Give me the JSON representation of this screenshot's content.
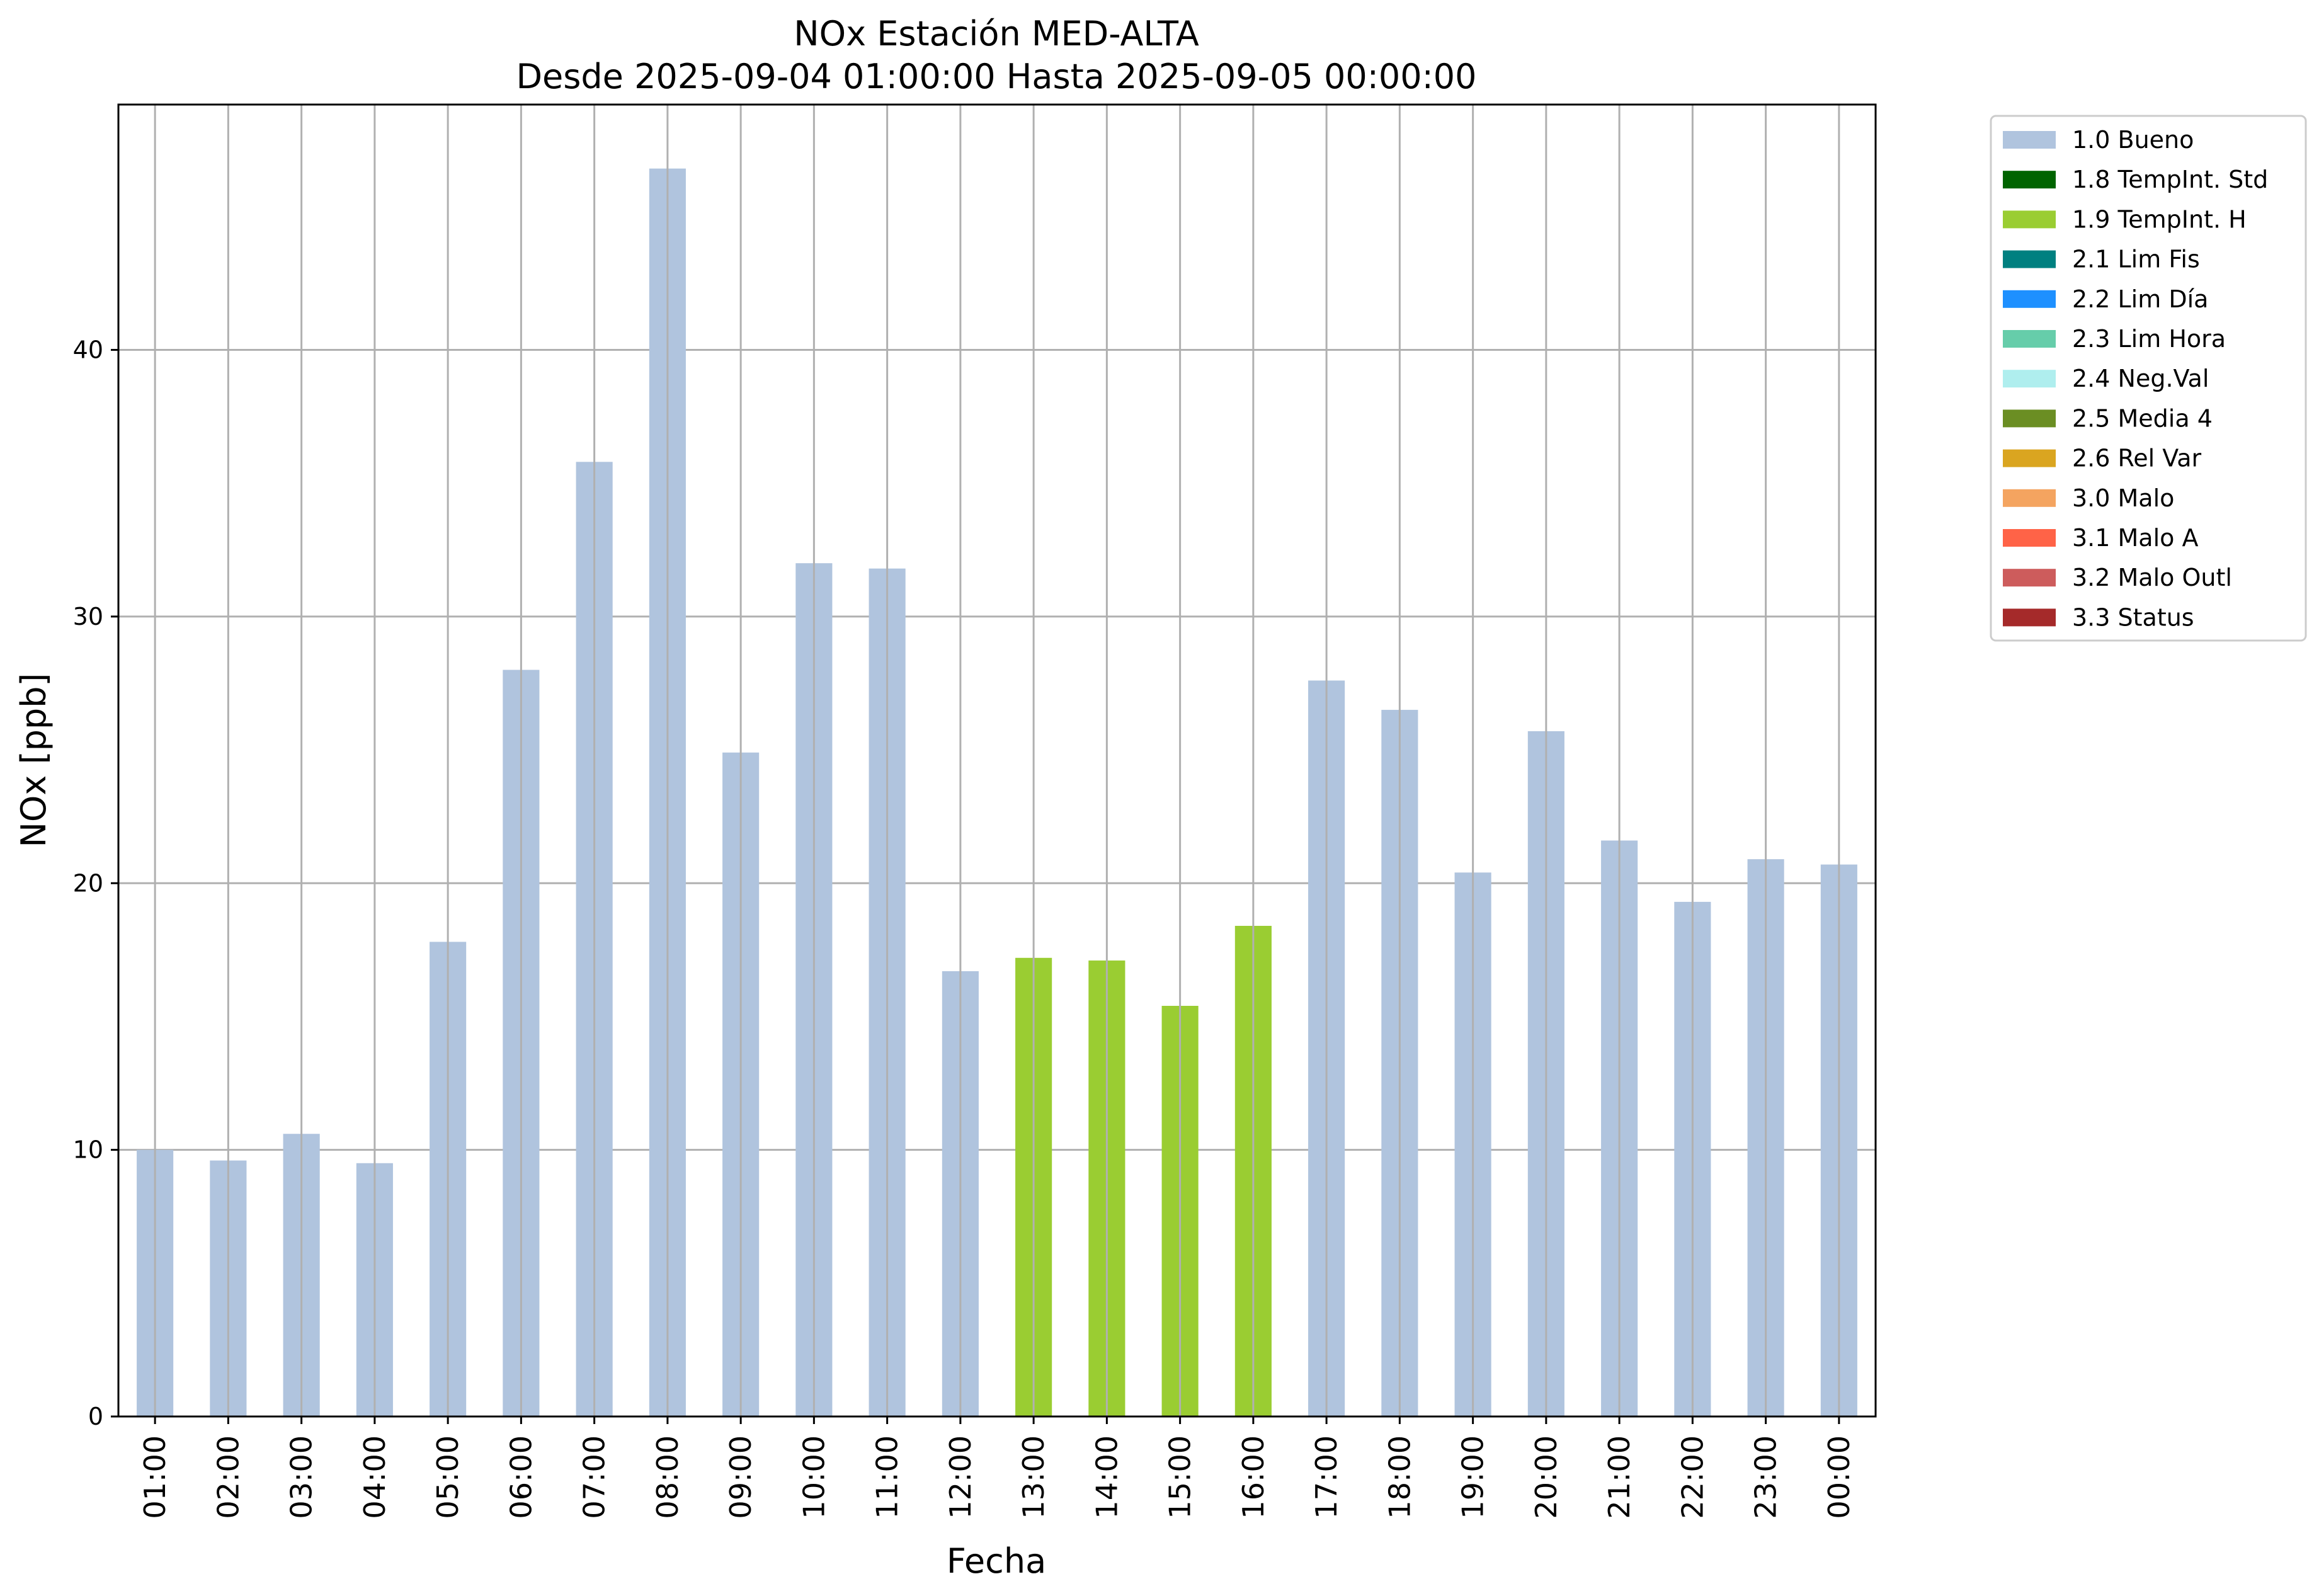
{
  "colors": {
    "Bueno": "#b0c4de",
    "TempIntH": "#9acd32",
    "grid": "#b0b0b0"
  },
  "chart_data": {
    "type": "bar",
    "title": "NOx Estación MED-ALTA",
    "subtitle": "Desde 2025-09-04 01:00:00 Hasta 2025-09-05 00:00:00",
    "xlabel": "Fecha",
    "ylabel": "NOx [ppb]",
    "ylim": [
      0,
      49.2
    ],
    "yticks": [
      0,
      10,
      20,
      30,
      40
    ],
    "grid": true,
    "legend_placement": "outside-top-right",
    "categories": [
      "01:00",
      "02:00",
      "03:00",
      "04:00",
      "05:00",
      "06:00",
      "07:00",
      "08:00",
      "09:00",
      "10:00",
      "11:00",
      "12:00",
      "13:00",
      "14:00",
      "15:00",
      "16:00",
      "17:00",
      "18:00",
      "19:00",
      "20:00",
      "21:00",
      "22:00",
      "23:00",
      "00:00"
    ],
    "values": [
      10.0,
      9.6,
      10.6,
      9.5,
      17.8,
      28.0,
      35.8,
      46.8,
      24.9,
      32.0,
      31.8,
      16.7,
      17.2,
      17.1,
      15.4,
      18.4,
      27.6,
      26.5,
      20.4,
      25.7,
      21.6,
      19.3,
      20.9,
      20.7
    ],
    "flags": [
      "1.0 Bueno",
      "1.0 Bueno",
      "1.0 Bueno",
      "1.0 Bueno",
      "1.0 Bueno",
      "1.0 Bueno",
      "1.0 Bueno",
      "1.0 Bueno",
      "1.0 Bueno",
      "1.0 Bueno",
      "1.0 Bueno",
      "1.0 Bueno",
      "1.9 TempInt. H",
      "1.9 TempInt. H",
      "1.9 TempInt. H",
      "1.9 TempInt. H",
      "1.0 Bueno",
      "1.0 Bueno",
      "1.0 Bueno",
      "1.0 Bueno",
      "1.0 Bueno",
      "1.0 Bueno",
      "1.0 Bueno",
      "1.0 Bueno"
    ],
    "legend": [
      {
        "label": "1.0 Bueno",
        "color": "#b0c4de"
      },
      {
        "label": "1.8 TempInt. Std",
        "color": "#006400"
      },
      {
        "label": "1.9 TempInt. H",
        "color": "#9acd32"
      },
      {
        "label": "2.1 Lim Fis",
        "color": "#008080"
      },
      {
        "label": "2.2 Lim Día",
        "color": "#1e90ff"
      },
      {
        "label": "2.3 Lim Hora",
        "color": "#66cdaa"
      },
      {
        "label": "2.4 Neg.Val",
        "color": "#afeeee"
      },
      {
        "label": "2.5 Media 4",
        "color": "#6b8e23"
      },
      {
        "label": "2.6 Rel Var",
        "color": "#daa520"
      },
      {
        "label": "3.0 Malo",
        "color": "#f4a460"
      },
      {
        "label": "3.1 Malo A",
        "color": "#ff6347"
      },
      {
        "label": "3.2 Malo Outl",
        "color": "#cd5c5c"
      },
      {
        "label": "3.3 Status",
        "color": "#a52a2a"
      }
    ]
  }
}
